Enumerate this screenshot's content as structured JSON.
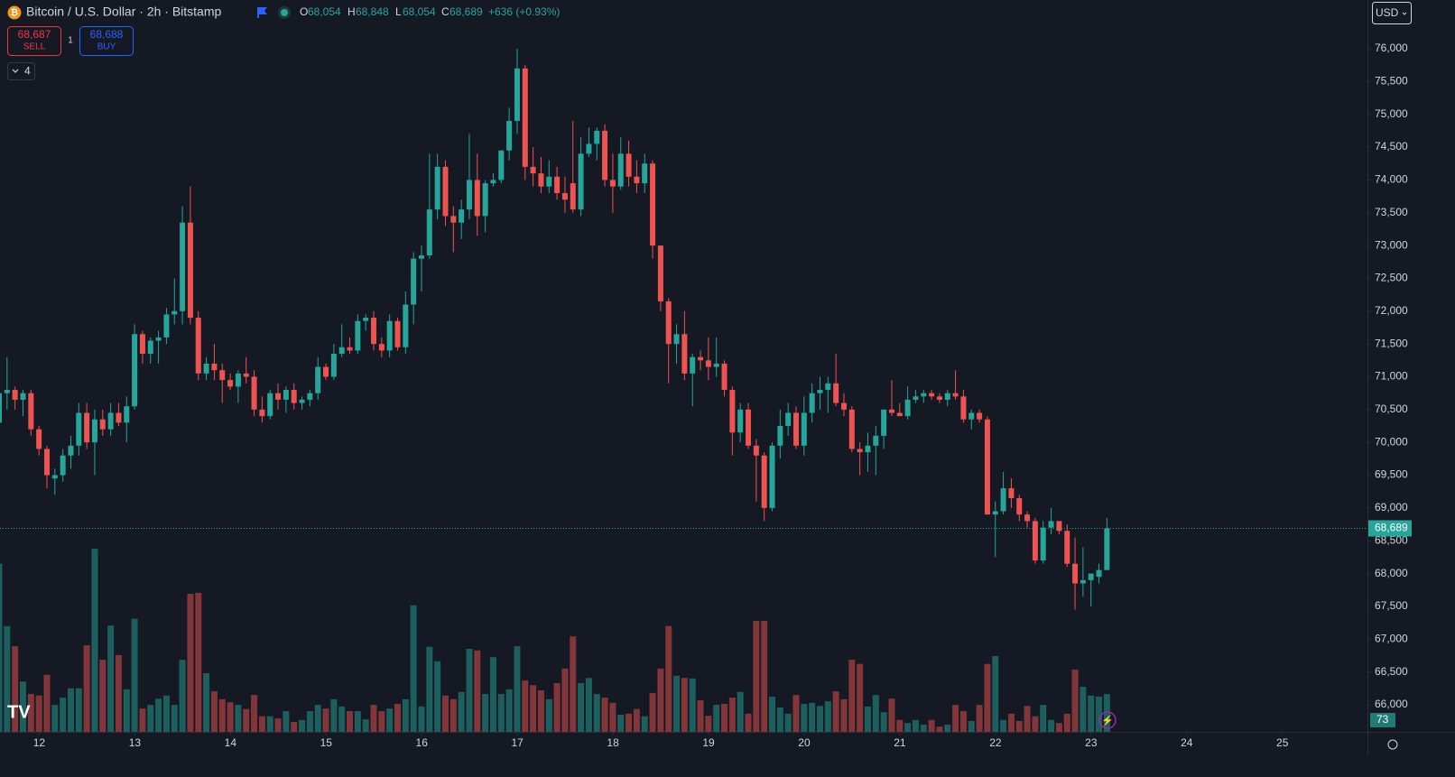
{
  "header": {
    "title": "Bitcoin / U.S. Dollar · 2h · Bitstamp",
    "o_label": "O",
    "o_value": "68,054",
    "h_label": "H",
    "h_value": "68,848",
    "l_label": "L",
    "l_value": "68,054",
    "c_label": "C",
    "c_value": "68,689",
    "change": "+636 (+0.93%)",
    "sell_price": "68,687",
    "sell_label": "SELL",
    "spread": "1",
    "buy_price": "68,688",
    "buy_label": "BUY",
    "indicators": "4",
    "currency": "USD"
  },
  "chart_data": {
    "type": "candlestick",
    "up_color": "#26a69a",
    "down_color": "#ef5350",
    "ylim": [
      65587,
      76743
    ],
    "yticks": [
      {
        "value": 66000,
        "label": "66,000"
      },
      {
        "value": 66500,
        "label": "66,500"
      },
      {
        "value": 67000,
        "label": "67,000"
      },
      {
        "value": 67500,
        "label": "67,500"
      },
      {
        "value": 68000,
        "label": "68,000"
      },
      {
        "value": 68500,
        "label": "68,500"
      },
      {
        "value": 69000,
        "label": "69,000"
      },
      {
        "value": 69500,
        "label": "69,500"
      },
      {
        "value": 70000,
        "label": "70,000"
      },
      {
        "value": 70500,
        "label": "70,500"
      },
      {
        "value": 71000,
        "label": "71,000"
      },
      {
        "value": 71500,
        "label": "71,500"
      },
      {
        "value": 72000,
        "label": "72,000"
      },
      {
        "value": 72500,
        "label": "72,500"
      },
      {
        "value": 73000,
        "label": "73,000"
      },
      {
        "value": 73500,
        "label": "73,500"
      },
      {
        "value": 74000,
        "label": "74,000"
      },
      {
        "value": 74500,
        "label": "74,500"
      },
      {
        "value": 75000,
        "label": "75,000"
      },
      {
        "value": 75500,
        "label": "75,500"
      },
      {
        "value": 76000,
        "label": "76,000"
      }
    ],
    "xlim": [
      11.59,
      25.89
    ],
    "xticks": [
      12,
      13,
      14,
      15,
      16,
      17,
      18,
      19,
      20,
      21,
      22,
      23,
      24,
      25
    ],
    "last_price": {
      "value": 68689,
      "label": "68,689"
    },
    "volume_lim": [
      0,
      400
    ],
    "ohlc": [
      [
        70300,
        70900,
        70200,
        70750
      ],
      [
        70750,
        71300,
        70500,
        70800
      ],
      [
        70800,
        70850,
        70500,
        70650
      ],
      [
        70650,
        70800,
        70400,
        70750
      ],
      [
        70750,
        70800,
        70100,
        70200
      ],
      [
        70200,
        70250,
        69800,
        69900
      ],
      [
        69900,
        69950,
        69300,
        69500
      ],
      [
        69450,
        69600,
        69200,
        69500
      ],
      [
        69500,
        69900,
        69400,
        69800
      ],
      [
        69800,
        70100,
        69600,
        69950
      ],
      [
        69950,
        70600,
        69800,
        70450
      ],
      [
        70450,
        70600,
        69900,
        70000
      ],
      [
        70000,
        70500,
        69500,
        70350
      ],
      [
        70350,
        70500,
        70100,
        70200
      ],
      [
        70200,
        70600,
        70100,
        70450
      ],
      [
        70450,
        70600,
        70250,
        70300
      ],
      [
        70300,
        70700,
        70000,
        70550
      ],
      [
        70550,
        71800,
        70500,
        71650
      ],
      [
        71650,
        71700,
        71200,
        71350
      ],
      [
        71350,
        71600,
        71200,
        71550
      ],
      [
        71550,
        71700,
        71200,
        71600
      ],
      [
        71600,
        72050,
        71500,
        71950
      ],
      [
        71950,
        72500,
        71800,
        72000
      ],
      [
        72000,
        73600,
        71800,
        73350
      ],
      [
        73350,
        73900,
        71800,
        71900
      ],
      [
        71900,
        72000,
        70950,
        71050
      ],
      [
        71050,
        71300,
        70950,
        71200
      ],
      [
        71200,
        71500,
        70950,
        71100
      ],
      [
        71100,
        71200,
        70600,
        70950
      ],
      [
        70950,
        71050,
        70800,
        70850
      ],
      [
        70850,
        71100,
        70600,
        71050
      ],
      [
        71050,
        71300,
        70900,
        71000
      ],
      [
        71000,
        71100,
        70400,
        70500
      ],
      [
        70500,
        70700,
        70300,
        70400
      ],
      [
        70400,
        70800,
        70350,
        70750
      ],
      [
        70750,
        70900,
        70500,
        70650
      ],
      [
        70650,
        70850,
        70450,
        70800
      ],
      [
        70800,
        70900,
        70500,
        70600
      ],
      [
        70600,
        70700,
        70500,
        70650
      ],
      [
        70650,
        70800,
        70550,
        70750
      ],
      [
        70750,
        71300,
        70650,
        71150
      ],
      [
        71150,
        71200,
        70950,
        71000
      ],
      [
        71000,
        71500,
        70950,
        71350
      ],
      [
        71350,
        71800,
        71300,
        71450
      ],
      [
        71450,
        71600,
        71350,
        71400
      ],
      [
        71400,
        71950,
        71350,
        71850
      ],
      [
        71850,
        71950,
        71700,
        71900
      ],
      [
        71900,
        72000,
        71400,
        71500
      ],
      [
        71500,
        71600,
        71300,
        71400
      ],
      [
        71400,
        71950,
        71300,
        71850
      ],
      [
        71850,
        71900,
        71400,
        71450
      ],
      [
        71450,
        72300,
        71350,
        72100
      ],
      [
        72100,
        72900,
        71800,
        72800
      ],
      [
        72800,
        73000,
        72300,
        72850
      ],
      [
        72850,
        74400,
        72800,
        73550
      ],
      [
        73550,
        74400,
        73400,
        74200
      ],
      [
        74200,
        74300,
        73300,
        73450
      ],
      [
        73450,
        73600,
        72900,
        73350
      ],
      [
        73350,
        73700,
        73100,
        73550
      ],
      [
        73550,
        74700,
        73400,
        74000
      ],
      [
        74000,
        74400,
        73150,
        73450
      ],
      [
        73450,
        74000,
        73200,
        73950
      ],
      [
        73950,
        74100,
        73900,
        74000
      ],
      [
        74000,
        74450,
        73950,
        74450
      ],
      [
        74450,
        75100,
        74300,
        74900
      ],
      [
        74900,
        76000,
        74700,
        75700
      ],
      [
        75700,
        75750,
        74000,
        74200
      ],
      [
        74200,
        74500,
        73900,
        74100
      ],
      [
        74100,
        74350,
        73800,
        73900
      ],
      [
        73900,
        74300,
        73800,
        74050
      ],
      [
        74050,
        74200,
        73700,
        73800
      ],
      [
        73800,
        74050,
        73500,
        73700
      ],
      [
        73950,
        74900,
        73500,
        73550
      ],
      [
        73550,
        74650,
        73450,
        74400
      ],
      [
        74400,
        74800,
        74350,
        74550
      ],
      [
        74550,
        74800,
        74300,
        74750
      ],
      [
        74750,
        74850,
        73900,
        74000
      ],
      [
        74000,
        74400,
        73500,
        73900
      ],
      [
        73900,
        74650,
        73850,
        74400
      ],
      [
        74400,
        74600,
        73900,
        74050
      ],
      [
        74050,
        74300,
        73800,
        73950
      ],
      [
        73950,
        74400,
        73800,
        74250
      ],
      [
        74250,
        74300,
        72800,
        73000
      ],
      [
        73000,
        73000,
        72000,
        72150
      ],
      [
        72150,
        72200,
        70900,
        71500
      ],
      [
        71500,
        71800,
        71200,
        71650
      ],
      [
        71650,
        72000,
        70950,
        71050
      ],
      [
        71050,
        71350,
        70550,
        71300
      ],
      [
        71300,
        71400,
        71100,
        71250
      ],
      [
        71250,
        71600,
        70950,
        71150
      ],
      [
        71150,
        71600,
        71000,
        71200
      ],
      [
        71200,
        71250,
        70700,
        70800
      ],
      [
        70800,
        70850,
        69800,
        70150
      ],
      [
        70150,
        70600,
        70000,
        70500
      ],
      [
        70500,
        70600,
        69900,
        69950
      ],
      [
        69950,
        70050,
        69100,
        69800
      ],
      [
        69800,
        69850,
        68800,
        69000
      ],
      [
        69000,
        70000,
        68950,
        69950
      ],
      [
        69950,
        70500,
        69750,
        70250
      ],
      [
        70250,
        70600,
        70100,
        70450
      ],
      [
        70450,
        70550,
        69900,
        69950
      ],
      [
        69950,
        70700,
        69800,
        70450
      ],
      [
        70450,
        70900,
        70300,
        70750
      ],
      [
        70750,
        71000,
        70500,
        70800
      ],
      [
        70800,
        71000,
        70450,
        70900
      ],
      [
        70900,
        71350,
        70550,
        70600
      ],
      [
        70600,
        70750,
        70400,
        70500
      ],
      [
        70500,
        70550,
        69850,
        69900
      ],
      [
        69900,
        70000,
        69500,
        69850
      ],
      [
        69850,
        70150,
        69550,
        69950
      ],
      [
        69950,
        70250,
        69500,
        70100
      ],
      [
        70100,
        70500,
        69900,
        70500
      ],
      [
        70500,
        70950,
        70400,
        70450
      ],
      [
        70450,
        70600,
        70400,
        70400
      ],
      [
        70400,
        70850,
        70350,
        70650
      ],
      [
        70650,
        70800,
        70600,
        70700
      ],
      [
        70700,
        70800,
        70600,
        70750
      ],
      [
        70750,
        70800,
        70650,
        70700
      ],
      [
        70700,
        70750,
        70600,
        70650
      ],
      [
        70650,
        70800,
        70550,
        70750
      ],
      [
        70750,
        71100,
        70650,
        70700
      ],
      [
        70700,
        70800,
        70300,
        70350
      ],
      [
        70350,
        70500,
        70200,
        70450
      ],
      [
        70450,
        70500,
        70300,
        70350
      ],
      [
        70350,
        70400,
        68900,
        68900
      ],
      [
        68900,
        69100,
        68250,
        68950
      ],
      [
        68950,
        69550,
        68900,
        69300
      ],
      [
        69300,
        69450,
        69000,
        69150
      ],
      [
        69150,
        69200,
        68800,
        68900
      ],
      [
        68900,
        68950,
        68700,
        68800
      ],
      [
        68800,
        68850,
        68150,
        68200
      ],
      [
        68200,
        68800,
        68150,
        68700
      ],
      [
        68700,
        69000,
        68600,
        68800
      ],
      [
        68800,
        68800,
        68600,
        68650
      ],
      [
        68650,
        68750,
        68100,
        68150
      ],
      [
        68150,
        68550,
        67450,
        67850
      ],
      [
        67850,
        68400,
        67650,
        67900
      ],
      [
        67900,
        68000,
        67500,
        68000
      ],
      [
        67950,
        68150,
        67850,
        68054
      ],
      [
        68054,
        68848,
        68054,
        68689
      ]
    ],
    "volume": [
      324,
      204,
      165,
      97,
      73,
      70,
      110,
      52,
      66,
      84,
      84,
      167,
      353,
      139,
      205,
      148,
      82,
      218,
      45,
      52,
      64,
      70,
      52,
      139,
      266,
      268,
      113,
      78,
      63,
      57,
      52,
      44,
      71,
      30,
      30,
      26,
      40,
      19,
      23,
      40,
      52,
      45,
      63,
      49,
      40,
      40,
      24,
      52,
      40,
      45,
      54,
      63,
      244,
      49,
      164,
      136,
      70,
      63,
      77,
      160,
      157,
      73,
      144,
      73,
      82,
      165,
      99,
      90,
      80,
      63,
      94,
      122,
      184,
      94,
      104,
      73,
      66,
      56,
      33,
      35,
      44,
      30,
      75,
      122,
      204,
      108,
      104,
      103,
      61,
      31,
      52,
      54,
      66,
      77,
      35,
      214,
      214,
      68,
      47,
      35,
      71,
      54,
      56,
      50,
      59,
      78,
      63,
      139,
      131,
      49,
      71,
      38,
      64,
      23,
      17,
      23,
      14,
      23,
      10,
      14,
      52,
      40,
      21,
      52,
      131,
      146,
      23,
      35,
      21,
      50,
      30,
      52,
      23,
      17,
      35,
      120,
      87,
      70,
      68,
      73
    ]
  }
}
